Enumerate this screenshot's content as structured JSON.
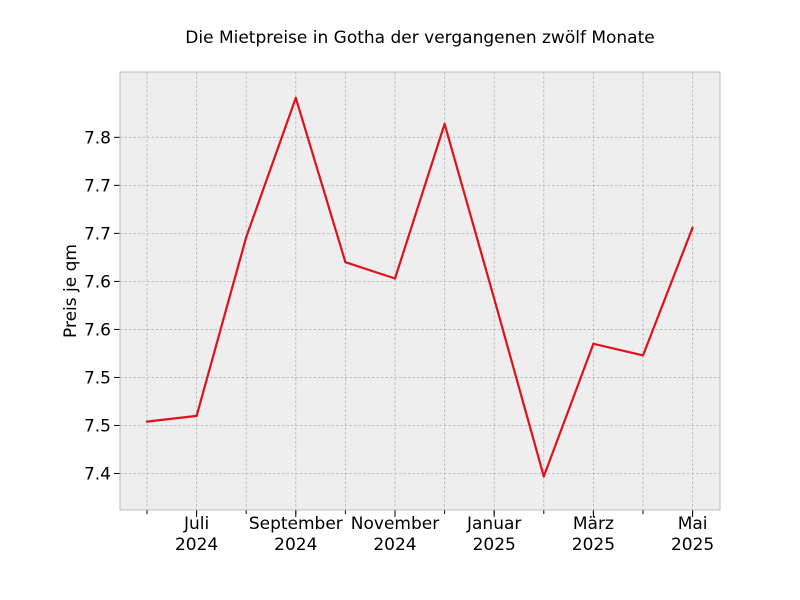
{
  "chart_data": {
    "type": "line",
    "title": "Die Mietpreise in Gotha der vergangenen zwölf Monate",
    "xlabel": "",
    "ylabel": "Preis je qm",
    "x": [
      "2024-06",
      "2024-07",
      "2024-08",
      "2024-09",
      "2024-10",
      "2024-11",
      "2024-12",
      "2025-01",
      "2025-02",
      "2025-03",
      "2025-04",
      "2025-05"
    ],
    "values": [
      7.454,
      7.46,
      7.646,
      7.791,
      7.62,
      7.603,
      7.764,
      7.582,
      7.397,
      7.535,
      7.523,
      7.656
    ],
    "ylim": [
      7.362,
      7.818
    ],
    "y_ticks": [
      {
        "value": 7.4,
        "label": "7.4"
      },
      {
        "value": 7.45,
        "label": "7.5"
      },
      {
        "value": 7.5,
        "label": "7.5"
      },
      {
        "value": 7.55,
        "label": "7.6"
      },
      {
        "value": 7.6,
        "label": "7.6"
      },
      {
        "value": 7.65,
        "label": "7.7"
      },
      {
        "value": 7.7,
        "label": "7.7"
      },
      {
        "value": 7.75,
        "label": "7.8"
      }
    ],
    "x_ticks": [
      {
        "index": 1,
        "line1": "Juli",
        "line2": "2024"
      },
      {
        "index": 3,
        "line1": "September",
        "line2": "2024"
      },
      {
        "index": 5,
        "line1": "November",
        "line2": "2024"
      },
      {
        "index": 7,
        "line1": "Januar",
        "line2": "2025"
      },
      {
        "index": 9,
        "line1": "März",
        "line2": "2025"
      },
      {
        "index": 11,
        "line1": "Mai",
        "line2": "2025"
      }
    ],
    "grid": true,
    "colors": {
      "line": "#e0101c",
      "plot_bg": "#eeeeee",
      "grid": "#b3b3b3",
      "frame": "#bcbcbc"
    }
  }
}
